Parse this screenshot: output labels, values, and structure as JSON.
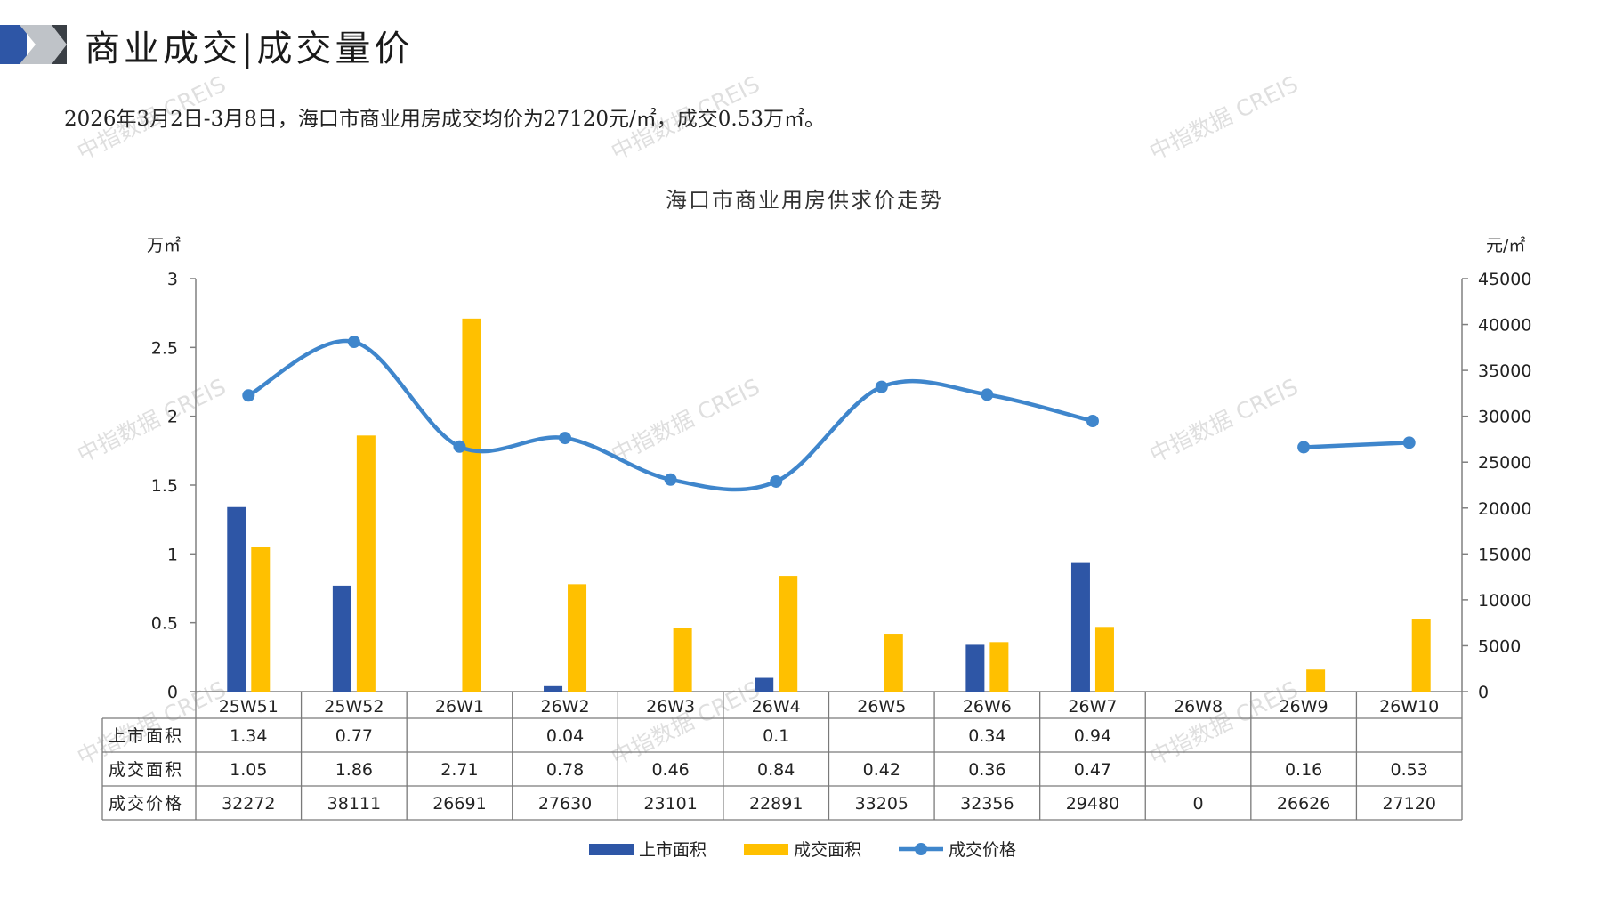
{
  "header": {
    "title": "商业成交|成交量价",
    "band_colors": {
      "blue": "#2E56A6",
      "gray": "#BFC3C8",
      "dark": "#3A3F45"
    }
  },
  "summary": "2026年3月2日-3月8日，海口市商业用房成交均价为27120元/㎡，成交0.53万㎡。",
  "watermark": "中指数据 CREIS",
  "chart_data": {
    "type": "bar",
    "title": "海口市商业用房供求价走势",
    "y_left_label": "万㎡",
    "y_right_label": "元/㎡",
    "y_left_lim": [
      0,
      3
    ],
    "y_left_ticks": [
      "0",
      "0.5",
      "1",
      "1.5",
      "2",
      "2.5",
      "3"
    ],
    "y_right_lim": [
      0,
      45000
    ],
    "y_right_ticks": [
      "0",
      "5000",
      "10000",
      "15000",
      "20000",
      "25000",
      "30000",
      "35000",
      "40000",
      "45000"
    ],
    "categories": [
      "25W51",
      "25W52",
      "26W1",
      "26W2",
      "26W3",
      "26W4",
      "26W5",
      "26W6",
      "26W7",
      "26W8",
      "26W9",
      "26W10"
    ],
    "series": [
      {
        "name": "上市面积",
        "kind": "bar",
        "axis": "left",
        "color": "#2E56A6",
        "values": [
          1.34,
          0.77,
          null,
          0.04,
          null,
          0.1,
          null,
          0.34,
          0.94,
          null,
          null,
          null
        ]
      },
      {
        "name": "成交面积",
        "kind": "bar",
        "axis": "left",
        "color": "#FFC000",
        "values": [
          1.05,
          1.86,
          2.71,
          0.78,
          0.46,
          0.84,
          0.42,
          0.36,
          0.47,
          null,
          0.16,
          0.53
        ]
      },
      {
        "name": "成交价格",
        "kind": "line",
        "axis": "right",
        "color": "#3F86CC",
        "values": [
          32272,
          38111,
          26691,
          27630,
          23101,
          22891,
          33205,
          32356,
          29480,
          0,
          26626,
          27120
        ]
      }
    ],
    "table_rows": [
      {
        "label": "上市面积",
        "cells": [
          "1.34",
          "0.77",
          "",
          "0.04",
          "",
          "0.1",
          "",
          "0.34",
          "0.94",
          "",
          "",
          ""
        ]
      },
      {
        "label": "成交面积",
        "cells": [
          "1.05",
          "1.86",
          "2.71",
          "0.78",
          "0.46",
          "0.84",
          "0.42",
          "0.36",
          "0.47",
          "",
          "0.16",
          "0.53"
        ]
      },
      {
        "label": "成交价格",
        "cells": [
          "32272",
          "38111",
          "26691",
          "27630",
          "23101",
          "22891",
          "33205",
          "32356",
          "29480",
          "0",
          "26626",
          "27120"
        ]
      }
    ],
    "legend_position": "bottom",
    "grid": false
  }
}
